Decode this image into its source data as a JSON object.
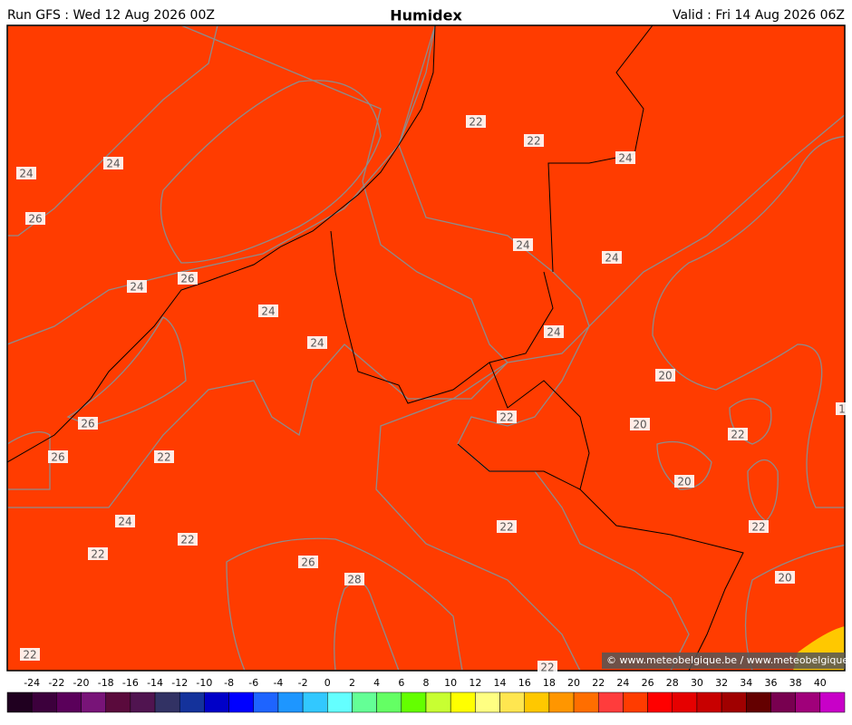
{
  "header": {
    "run": "Run GFS : Wed 12 Aug 2026 00Z",
    "title": "Humidex",
    "valid": "Valid : Fri 14 Aug 2026 06Z"
  },
  "contour_labels": [
    "24",
    "24",
    "26",
    "26",
    "24",
    "24",
    "24",
    "22",
    "22",
    "24",
    "24",
    "24",
    "24",
    "20",
    "22",
    "20",
    "22",
    "26",
    "26",
    "22",
    "20",
    "24",
    "22",
    "22",
    "22",
    "22",
    "26",
    "28",
    "20",
    "22",
    "22",
    "1"
  ],
  "copyright": "© www.meteobelgique.be / www.meteobelgique.be",
  "colorbar": {
    "ticks": [
      -24,
      -22,
      -20,
      -18,
      -16,
      -14,
      -12,
      -10,
      -8,
      -6,
      -4,
      -2,
      0,
      2,
      4,
      6,
      8,
      10,
      12,
      14,
      16,
      18,
      20,
      22,
      24,
      26,
      28,
      30,
      32,
      34,
      36,
      38,
      40
    ],
    "colors": [
      "#200020",
      "#3c003c",
      "#5a005a",
      "#781478",
      "#5a0a3c",
      "#501450",
      "#323264",
      "#14329b",
      "#0000c8",
      "#0000ff",
      "#1e64ff",
      "#1e96ff",
      "#32c8ff",
      "#64ffff",
      "#64ff96",
      "#64ff64",
      "#64ff00",
      "#c8ff32",
      "#ffff00",
      "#ffff82",
      "#ffe650",
      "#ffc800",
      "#ff9600",
      "#ff6e00",
      "#ff3c3c",
      "#ff3c00",
      "#ff0000",
      "#e60000",
      "#c80000",
      "#a00000",
      "#640000",
      "#780050",
      "#a0007a",
      "#c800c8"
    ]
  }
}
